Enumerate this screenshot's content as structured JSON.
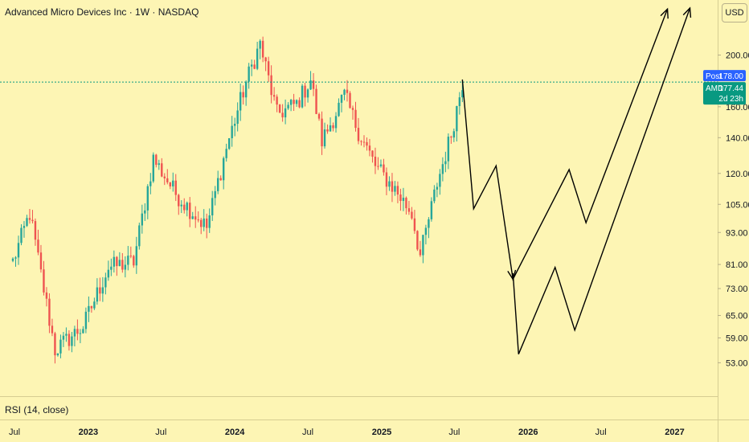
{
  "chart": {
    "title": "Advanced Micro Devices Inc · 1W · NASDAQ",
    "currency": "USD",
    "indicator_label": "RSI (14, close)"
  },
  "price_tags": {
    "post_label": "Post",
    "post_value": "178.00",
    "ticker_label": "AMD",
    "last_value": "177.44",
    "countdown": "2d 23h"
  },
  "colors": {
    "background": "#fdf5b4",
    "up": "#26a69a",
    "down": "#ef5350",
    "post_tag": "#2962ff",
    "last_tag": "#089981",
    "drawing": "#000000"
  },
  "chart_data": {
    "type": "candlestick",
    "y_scale": "log",
    "ylim": [
      47,
      245
    ],
    "x_range": [
      "2022-06-27",
      "2027-03-01"
    ],
    "y_ticks": [
      "200.00",
      "160.00",
      "140.00",
      "120.00",
      "105.00",
      "93.00",
      "81.00",
      "73.00",
      "65.00",
      "59.00",
      "53.00"
    ],
    "x_ticks": [
      "Jul",
      "2023",
      "Jul",
      "2024",
      "Jul",
      "2025",
      "Jul",
      "2026",
      "Jul",
      "2027"
    ],
    "reference_line": 178.0,
    "anchors": [
      {
        "date": "2022-06-27",
        "price": 82
      },
      {
        "date": "2022-08-08",
        "price": 101
      },
      {
        "date": "2022-10-10",
        "price": 56
      },
      {
        "date": "2022-12-19",
        "price": 62
      },
      {
        "date": "2023-02-20",
        "price": 80
      },
      {
        "date": "2023-04-24",
        "price": 82
      },
      {
        "date": "2023-06-12",
        "price": 128
      },
      {
        "date": "2023-08-07",
        "price": 110
      },
      {
        "date": "2023-10-23",
        "price": 95
      },
      {
        "date": "2023-12-11",
        "price": 134
      },
      {
        "date": "2024-01-29",
        "price": 178
      },
      {
        "date": "2024-03-04",
        "price": 210
      },
      {
        "date": "2024-04-15",
        "price": 155
      },
      {
        "date": "2024-06-03",
        "price": 162
      },
      {
        "date": "2024-07-08",
        "price": 180
      },
      {
        "date": "2024-08-05",
        "price": 138
      },
      {
        "date": "2024-09-30",
        "price": 168
      },
      {
        "date": "2024-11-04",
        "price": 144
      },
      {
        "date": "2024-12-16",
        "price": 124
      },
      {
        "date": "2025-02-03",
        "price": 112
      },
      {
        "date": "2025-03-17",
        "price": 101
      },
      {
        "date": "2025-04-07",
        "price": 84
      },
      {
        "date": "2025-05-19",
        "price": 115
      },
      {
        "date": "2025-06-23",
        "price": 142
      },
      {
        "date": "2025-07-21",
        "price": 178
      }
    ],
    "projection": {
      "path_a": [
        {
          "date": "2025-07-21",
          "price": 180
        },
        {
          "date": "2025-08-18",
          "price": 103
        },
        {
          "date": "2025-10-13",
          "price": 124
        },
        {
          "date": "2025-11-24",
          "price": 76
        },
        {
          "date": "2026-04-13",
          "price": 122
        },
        {
          "date": "2026-05-25",
          "price": 97
        },
        {
          "date": "2026-12-14",
          "price": 244
        }
      ],
      "path_b": [
        {
          "date": "2025-11-24",
          "price": 78
        },
        {
          "date": "2025-12-08",
          "price": 55
        },
        {
          "date": "2026-03-09",
          "price": 80
        },
        {
          "date": "2026-04-27",
          "price": 61
        },
        {
          "date": "2027-02-08",
          "price": 245
        }
      ]
    }
  }
}
